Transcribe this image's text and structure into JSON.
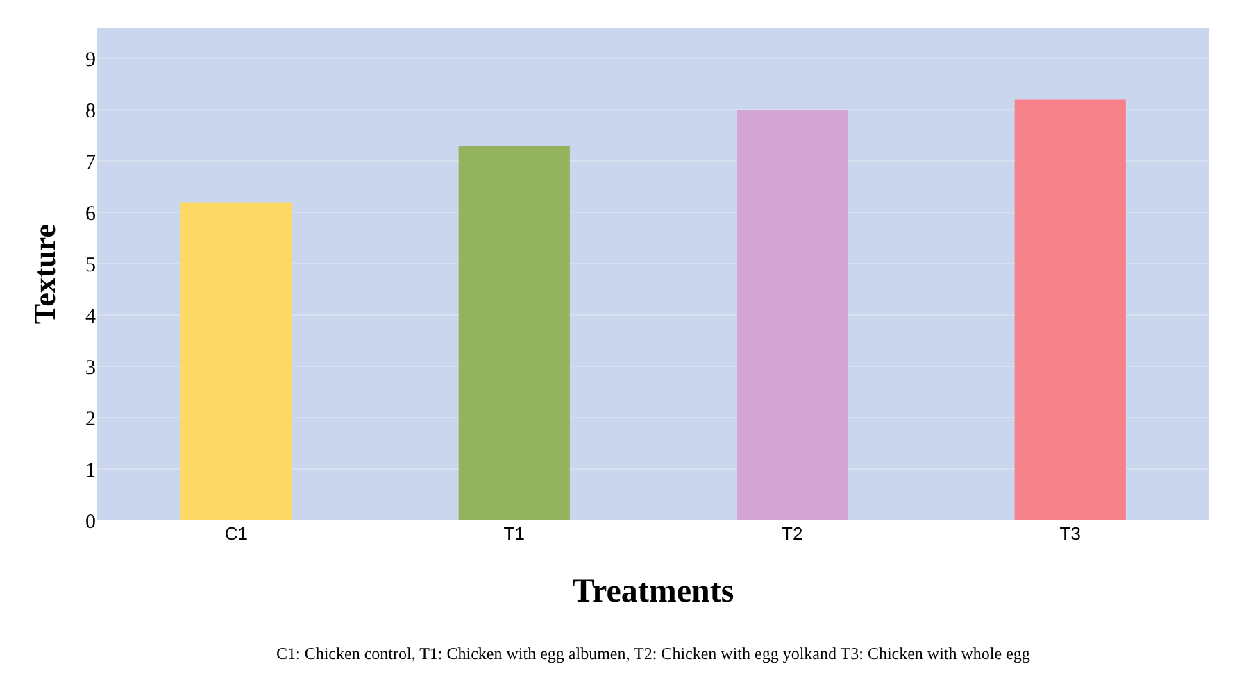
{
  "chart_data": {
    "type": "bar",
    "categories": [
      "C1",
      "T1",
      "T2",
      "T3"
    ],
    "values": [
      6.2,
      7.3,
      8.0,
      8.2
    ],
    "colors": [
      "#ffd966",
      "#93b35f",
      "#d5a6d5",
      "#f7818a"
    ],
    "xlabel": "Treatments",
    "ylabel": "Texture",
    "ylim": [
      0,
      9.6
    ],
    "yticks": [
      0,
      1,
      2,
      3,
      4,
      5,
      6,
      7,
      8,
      9
    ],
    "grid": "y",
    "annotations": [
      "C1: Chicken control, T1: Chicken with egg albumen, T2: Chicken with egg yolkand T3: Chicken with whole egg"
    ]
  }
}
